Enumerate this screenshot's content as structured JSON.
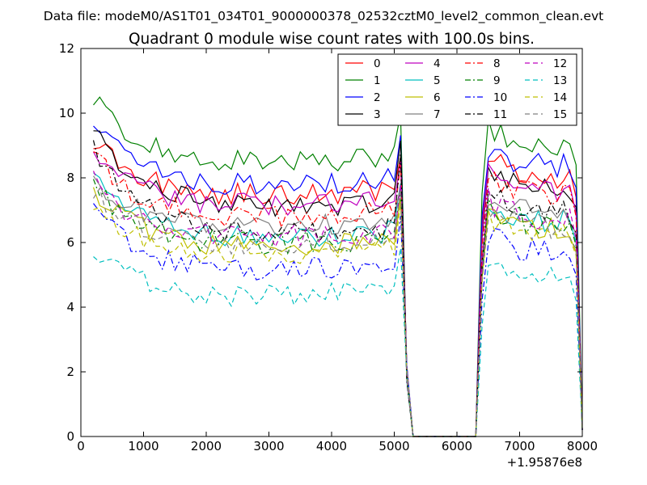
{
  "chart_data": {
    "type": "line",
    "suptitle": "Data file: modeM0/AS1T01_034T01_9000000378_02532cztM0_level2_common_clean.evt",
    "title": "Quadrant 0 module wise count rates with 100.0s bins.",
    "xlabel": "",
    "ylabel": "",
    "x_offset_label": "+1.95876e8",
    "xlim": [
      0,
      8000
    ],
    "ylim": [
      0,
      12
    ],
    "x_ticks": [
      "0",
      "1000",
      "2000",
      "3000",
      "4000",
      "5000",
      "6000",
      "7000",
      "8000"
    ],
    "y_ticks": [
      "0",
      "2",
      "4",
      "6",
      "8",
      "10",
      "12"
    ],
    "x": [
      200,
      300,
      400,
      500,
      600,
      700,
      800,
      900,
      1000,
      1100,
      1200,
      1300,
      1400,
      1500,
      1600,
      1700,
      1800,
      1900,
      2000,
      2100,
      2200,
      2300,
      2400,
      2500,
      2600,
      2700,
      2800,
      2900,
      3000,
      3100,
      3200,
      3300,
      3400,
      3500,
      3600,
      3700,
      3800,
      3900,
      4000,
      4100,
      4200,
      4300,
      4400,
      4500,
      4600,
      4700,
      4800,
      4900,
      5000,
      5100,
      5200,
      5300,
      5400,
      5500,
      5600,
      5700,
      5800,
      5900,
      6000,
      6100,
      6200,
      6300,
      6400,
      6500,
      6600,
      6700,
      6800,
      6900,
      7000,
      7100,
      7200,
      7300,
      7400,
      7500,
      7600,
      7700,
      7800,
      7900,
      8000
    ],
    "legend_position": "top-right",
    "series": [
      {
        "name": "0",
        "color": "#ff0000",
        "dash": "solid",
        "level": 7.3,
        "start": 9.2,
        "post": 8.0
      },
      {
        "name": "1",
        "color": "#008000",
        "dash": "solid",
        "level": 8.3,
        "start": 10.5,
        "post": 9.0
      },
      {
        "name": "2",
        "color": "#0000ff",
        "dash": "solid",
        "level": 7.6,
        "start": 9.8,
        "post": 8.3
      },
      {
        "name": "3",
        "color": "#000000",
        "dash": "solid",
        "level": 6.9,
        "start": 9.6,
        "post": 7.7
      },
      {
        "name": "4",
        "color": "#bf00bf",
        "dash": "solid",
        "level": 7.0,
        "start": 8.9,
        "post": 7.5
      },
      {
        "name": "5",
        "color": "#00bfbf",
        "dash": "solid",
        "level": 6.0,
        "start": 8.2,
        "post": 6.6
      },
      {
        "name": "6",
        "color": "#bfbf00",
        "dash": "solid",
        "level": 5.7,
        "start": 7.7,
        "post": 6.3
      },
      {
        "name": "7",
        "color": "#808080",
        "dash": "solid",
        "level": 6.3,
        "start": 8.0,
        "post": 6.9
      },
      {
        "name": "8",
        "color": "#ff0000",
        "dash": "dashdot",
        "level": 6.6,
        "start": 8.7,
        "post": 7.4
      },
      {
        "name": "9",
        "color": "#008000",
        "dash": "dashdot",
        "level": 5.8,
        "start": 7.8,
        "post": 6.5
      },
      {
        "name": "10",
        "color": "#0000ff",
        "dash": "dashdot",
        "level": 5.0,
        "start": 7.0,
        "post": 5.6
      },
      {
        "name": "11",
        "color": "#000000",
        "dash": "dashdot",
        "level": 6.1,
        "start": 8.9,
        "post": 6.9
      },
      {
        "name": "12",
        "color": "#bf00bf",
        "dash": "dashed",
        "level": 6.0,
        "start": 7.9,
        "post": 6.7
      },
      {
        "name": "13",
        "color": "#00bfbf",
        "dash": "dashed",
        "level": 4.2,
        "start": 5.9,
        "post": 4.8
      },
      {
        "name": "14",
        "color": "#bfbf00",
        "dash": "dashed",
        "level": 5.5,
        "start": 7.3,
        "post": 6.2
      },
      {
        "name": "15",
        "color": "#808080",
        "dash": "dashed",
        "level": 5.7,
        "start": 7.6,
        "post": 6.4
      }
    ]
  }
}
